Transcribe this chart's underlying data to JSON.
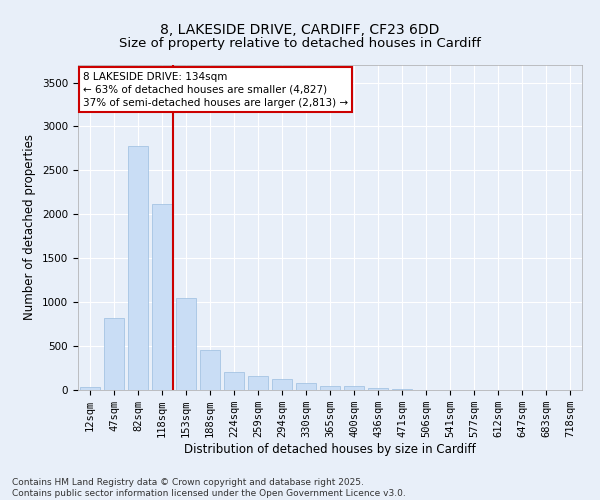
{
  "title_line1": "8, LAKESIDE DRIVE, CARDIFF, CF23 6DD",
  "title_line2": "Size of property relative to detached houses in Cardiff",
  "xlabel": "Distribution of detached houses by size in Cardiff",
  "ylabel": "Number of detached properties",
  "bar_color": "#c9ddf5",
  "bar_edge_color": "#9bbde0",
  "background_color": "#e8eff9",
  "fig_background_color": "#e8eff9",
  "grid_color": "#ffffff",
  "vline_color": "#cc0000",
  "vline_x_index": 3.45,
  "annotation_box_text": "8 LAKESIDE DRIVE: 134sqm\n← 63% of detached houses are smaller (4,827)\n37% of semi-detached houses are larger (2,813) →",
  "annotation_box_color": "#cc0000",
  "categories": [
    "12sqm",
    "47sqm",
    "82sqm",
    "118sqm",
    "153sqm",
    "188sqm",
    "224sqm",
    "259sqm",
    "294sqm",
    "330sqm",
    "365sqm",
    "400sqm",
    "436sqm",
    "471sqm",
    "506sqm",
    "541sqm",
    "577sqm",
    "612sqm",
    "647sqm",
    "683sqm",
    "718sqm"
  ],
  "values": [
    30,
    820,
    2780,
    2120,
    1050,
    450,
    210,
    160,
    130,
    80,
    40,
    40,
    20,
    10,
    5,
    3,
    2,
    1,
    1,
    0,
    0
  ],
  "ylim": [
    0,
    3700
  ],
  "yticks": [
    0,
    500,
    1000,
    1500,
    2000,
    2500,
    3000,
    3500
  ],
  "footer": "Contains HM Land Registry data © Crown copyright and database right 2025.\nContains public sector information licensed under the Open Government Licence v3.0.",
  "title_fontsize": 10,
  "axis_label_fontsize": 8.5,
  "tick_fontsize": 7.5,
  "footer_fontsize": 6.5,
  "annotation_fontsize": 7.5
}
